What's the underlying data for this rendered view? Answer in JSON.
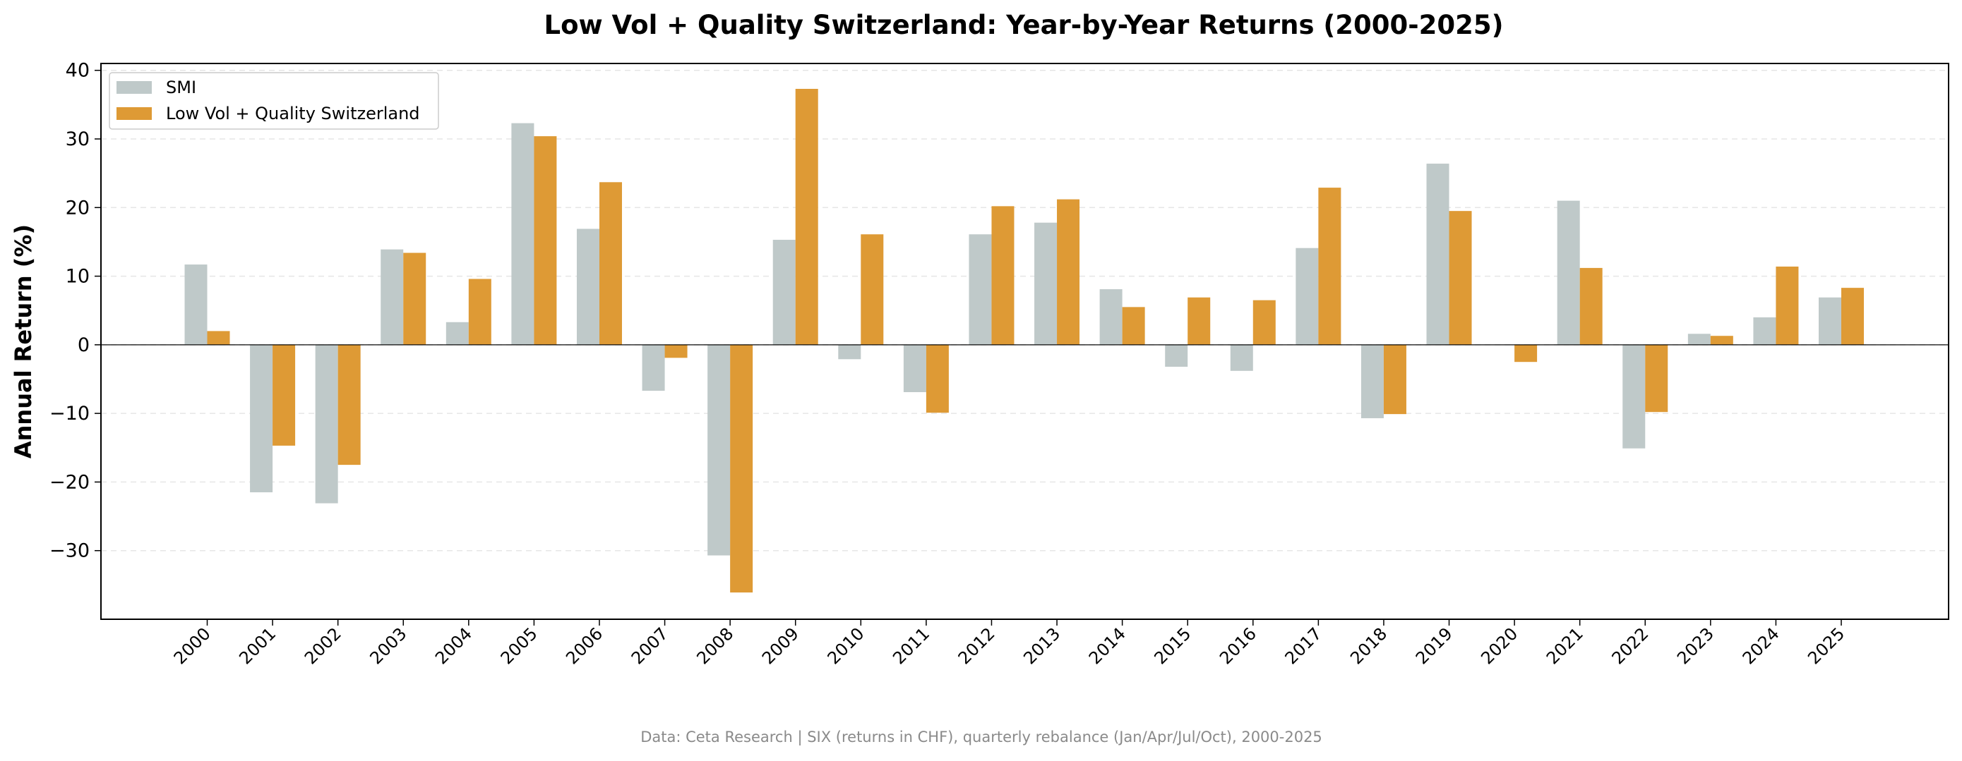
{
  "chart_data": {
    "type": "bar",
    "title": "Low Vol + Quality Switzerland: Year-by-Year Returns (2000-2025)",
    "xlabel": "",
    "ylabel": "Annual Return (%)",
    "ylim": [
      -40,
      41
    ],
    "yticks": [
      40,
      30,
      20,
      10,
      0,
      -10,
      -20,
      -30
    ],
    "ytick_labels": [
      "40",
      "30",
      "20",
      "10",
      "0",
      "−10",
      "−20",
      "−30"
    ],
    "grid": true,
    "legend_position": "top-left",
    "categories": [
      "2000",
      "2001",
      "2002",
      "2003",
      "2004",
      "2005",
      "2006",
      "2007",
      "2008",
      "2009",
      "2010",
      "2011",
      "2012",
      "2013",
      "2014",
      "2015",
      "2016",
      "2017",
      "2018",
      "2019",
      "2020",
      "2021",
      "2022",
      "2023",
      "2024",
      "2025"
    ],
    "series": [
      {
        "name": "SMI",
        "color": "#bfc9c9",
        "values": [
          11.7,
          -21.5,
          -23.1,
          13.9,
          3.3,
          32.3,
          16.9,
          -6.7,
          -30.7,
          15.3,
          -2.1,
          -6.9,
          16.1,
          17.8,
          8.1,
          -3.2,
          -3.8,
          14.1,
          -10.7,
          26.4,
          0.0,
          21.0,
          -15.1,
          1.6,
          4.0,
          6.9
        ]
      },
      {
        "name": "Low Vol + Quality Switzerland",
        "color": "#de9a35",
        "values": [
          2.0,
          -14.7,
          -17.5,
          13.4,
          9.6,
          30.4,
          23.7,
          -1.9,
          -36.1,
          37.3,
          16.1,
          -9.9,
          20.2,
          21.2,
          5.5,
          6.9,
          6.5,
          22.9,
          -10.1,
          19.5,
          -2.5,
          11.2,
          -9.8,
          1.3,
          11.4,
          8.3
        ]
      }
    ],
    "source": "Data: Ceta Research | SIX (returns in CHF), quarterly rebalance (Jan/Apr/Jul/Oct), 2000-2025"
  }
}
